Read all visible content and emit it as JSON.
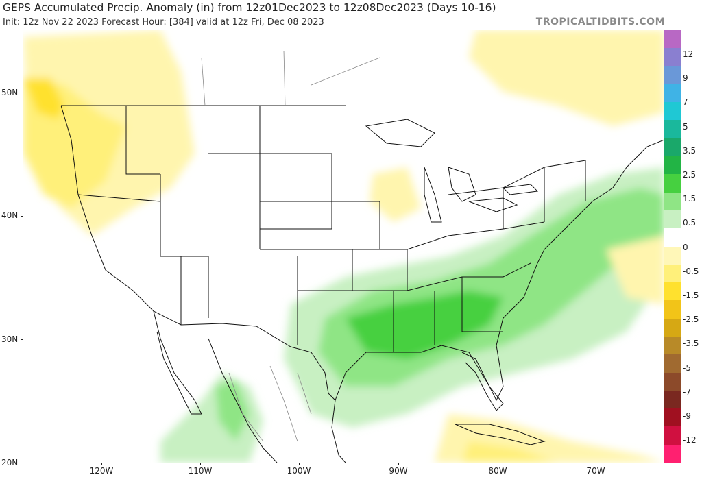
{
  "header": {
    "title": "GEPS Accumulated Precip. Anomaly (in) from 12z01Dec2023 to 12z08Dec2023 (Days 10-16)",
    "subtitle": "Init: 12z Nov 22 2023   Forecast Hour: [384]   valid at 12z Fri, Dec 08 2023",
    "brand": "TROPICALTIDBITS.COM"
  },
  "axes": {
    "lat_labels": [
      "50N",
      "40N",
      "30N",
      "20N"
    ],
    "lon_labels": [
      "120W",
      "110W",
      "100W",
      "90W",
      "80W",
      "70W"
    ]
  },
  "colorbar": {
    "labels": [
      "12",
      "9",
      "7",
      "5",
      "3.5",
      "2.5",
      "1.5",
      "0.5",
      "0",
      "-0.5",
      "-1.5",
      "-2.5",
      "-3.5",
      "-5",
      "-7",
      "-9",
      "-12"
    ],
    "colors": [
      "#b868c4",
      "#8a7fd0",
      "#6a98d8",
      "#3fb3e6",
      "#1fc8d4",
      "#1ab89c",
      "#1aa86a",
      "#22b445",
      "#46d040",
      "#8fe585",
      "#c8f0c2",
      "#ffffff",
      "#fff7b8",
      "#fff07a",
      "#ffe12e",
      "#f2c418",
      "#d6a814",
      "#b88a28",
      "#a06a30",
      "#8c4a2a",
      "#7a2820",
      "#a01020",
      "#d01040",
      "#ff2070"
    ]
  },
  "map": {
    "features": [
      "precip-anomaly-field",
      "state-borders",
      "coastlines",
      "country-borders"
    ]
  }
}
